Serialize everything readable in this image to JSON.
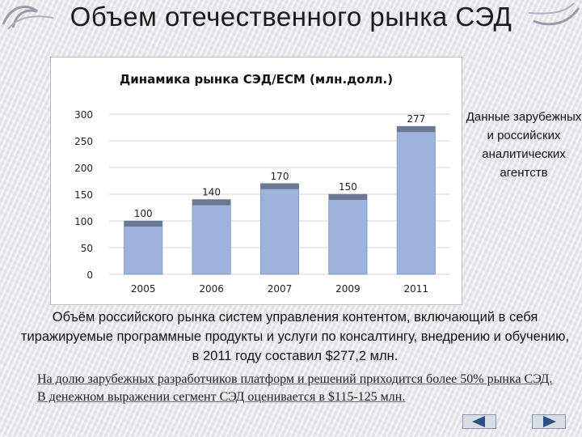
{
  "slide": {
    "title": "Объем отечественного рынка СЭД",
    "side_note": "Данные зарубежных и российских аналитических агентств",
    "paragraph_main": "Объём российского рынка систем управления контентом, включающий в себя тиражируемые программные продукты и услуги по консалтингу, внедрению и обучению, в 2011 году составил $277,2 млн.",
    "paragraph_secondary": "На долю зарубежных разработчиков платформ и решений приходится более 50% рынка СЭД. В денежном выражении сегмент СЭД оценивается в $115-125 млн."
  },
  "nav": {
    "prev_icon": "arrow-left-icon",
    "next_icon": "arrow-right-icon"
  },
  "colors": {
    "bar": "#9db3dc",
    "bar_cap": "#6b7891",
    "bar_edge": "#7f93bf"
  },
  "chart_data": {
    "type": "bar",
    "title": "Динамика рынка СЭД/ECM (млн.долл.)",
    "categories": [
      "2005",
      "2006",
      "2007",
      "2009",
      "2011"
    ],
    "values": [
      100,
      140,
      170,
      150,
      277
    ],
    "data_labels": [
      "100",
      "140",
      "170",
      "150",
      "277"
    ],
    "y_ticks": [
      "0",
      "50",
      "100",
      "150",
      "200",
      "250",
      "300"
    ],
    "ylim": [
      0,
      300
    ],
    "grid": true,
    "legend": "none"
  }
}
